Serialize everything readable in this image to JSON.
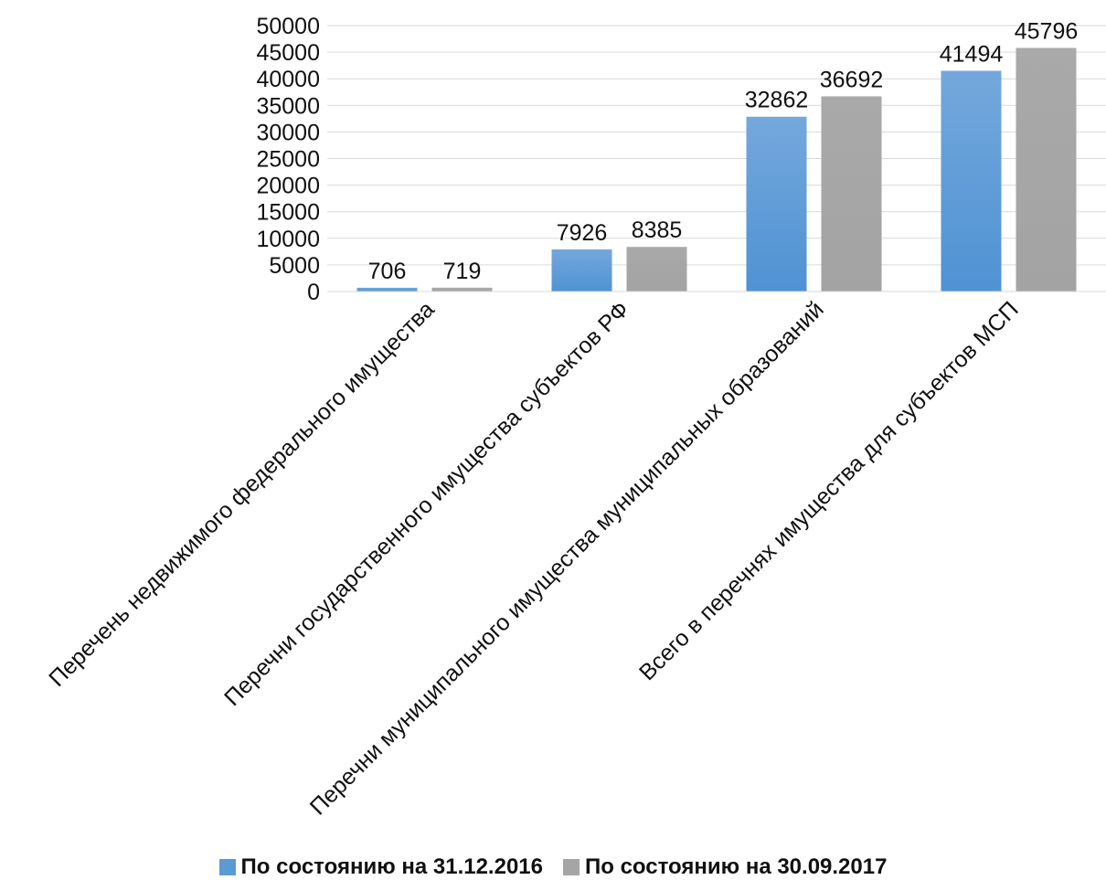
{
  "chart_data": {
    "type": "bar",
    "categories": [
      "Перечень недвижимого федерального имущества",
      "Перечни государственного имущества субъектов РФ",
      "Перечни муниципального имущества муниципальных образований",
      "Всего в перечнях имущества для субъектов МСП"
    ],
    "series": [
      {
        "name": "По состоянию на 31.12.2016",
        "values": [
          706,
          7926,
          32862,
          41494
        ],
        "color": "#5b9bd5"
      },
      {
        "name": "По состоянию на 30.09.2017",
        "values": [
          719,
          8385,
          36692,
          45796
        ],
        "color": "#a5a5a5"
      }
    ],
    "ylim": [
      0,
      50000
    ],
    "yticks": [
      "0",
      "5000",
      "10000",
      "15000",
      "20000",
      "25000",
      "30000",
      "35000",
      "40000",
      "45000",
      "50000"
    ],
    "data_labels": true,
    "grid": true,
    "legend_position": "bottom"
  }
}
